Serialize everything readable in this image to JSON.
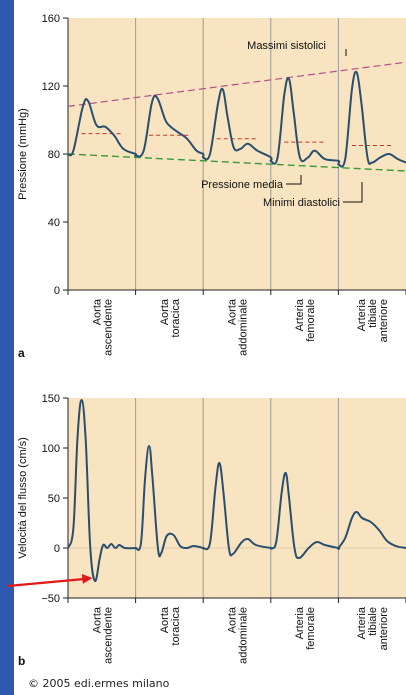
{
  "colors": {
    "panel_bg": "#f8e4c0",
    "divider": "#9a9a9a",
    "curve": "#2a4f6e",
    "systolic_trend": "#b0508a",
    "diastolic_trend": "#3a9a3a",
    "mean_marker": "#c0392b",
    "arrow": "#e01818",
    "edge_strip": "#2e59b0"
  },
  "copyright": "© 2005 edi.ermes milano",
  "chart_data": [
    {
      "panel_label": "a",
      "type": "line",
      "ylabel": "Pressione (mmHg)",
      "ylim": [
        0,
        160
      ],
      "yticks": [
        "0",
        "40",
        "80",
        "120",
        "160"
      ],
      "categories": [
        "Aorta ascendente",
        "Aorta toracica",
        "Aorta addominale",
        "Arteria femorale",
        "Arteria tibiale anteriore"
      ],
      "annotations": [
        "Massimi sistolici",
        "Pressione media",
        "Minimi diastolici"
      ],
      "systolic_peaks": [
        110,
        113,
        118,
        124,
        128
      ],
      "mean_pressure": [
        92,
        91,
        89,
        87,
        85
      ],
      "diastolic_minima": [
        80,
        78,
        77,
        75,
        73
      ],
      "systolic_trend": [
        [
          0,
          108
        ],
        [
          5,
          134
        ]
      ],
      "diastolic_trend": [
        [
          0,
          80
        ],
        [
          5,
          70
        ]
      ],
      "waveform": [
        [
          0,
          80
        ],
        [
          0.08,
          82
        ],
        [
          0.22,
          108
        ],
        [
          0.3,
          111
        ],
        [
          0.42,
          97
        ],
        [
          0.55,
          96
        ],
        [
          0.68,
          91
        ],
        [
          0.82,
          83
        ],
        [
          1.0,
          80
        ],
        [
          1.0,
          79
        ],
        [
          1.12,
          82
        ],
        [
          1.24,
          110
        ],
        [
          1.32,
          113
        ],
        [
          1.44,
          100
        ],
        [
          1.52,
          96
        ],
        [
          1.62,
          93
        ],
        [
          1.76,
          89
        ],
        [
          1.9,
          82
        ],
        [
          2.0,
          80
        ],
        [
          2.0,
          78
        ],
        [
          2.1,
          80
        ],
        [
          2.22,
          110
        ],
        [
          2.29,
          118
        ],
        [
          2.36,
          102
        ],
        [
          2.45,
          84
        ],
        [
          2.55,
          83
        ],
        [
          2.66,
          86
        ],
        [
          2.8,
          82
        ],
        [
          3.0,
          78
        ],
        [
          3.0,
          76
        ],
        [
          3.1,
          78
        ],
        [
          3.2,
          115
        ],
        [
          3.27,
          124
        ],
        [
          3.34,
          104
        ],
        [
          3.43,
          78
        ],
        [
          3.55,
          78
        ],
        [
          3.65,
          82
        ],
        [
          3.8,
          77
        ],
        [
          4.0,
          76
        ],
        [
          4.0,
          74
        ],
        [
          4.1,
          77
        ],
        [
          4.2,
          118
        ],
        [
          4.27,
          128
        ],
        [
          4.34,
          110
        ],
        [
          4.43,
          78
        ],
        [
          4.5,
          75
        ],
        [
          4.62,
          78
        ],
        [
          4.75,
          80
        ],
        [
          4.88,
          77
        ],
        [
          5.0,
          75
        ]
      ]
    },
    {
      "panel_label": "b",
      "type": "line",
      "ylabel": "Velocità del flusso (cm/s)",
      "ylim": [
        -50,
        150
      ],
      "yticks": [
        "−50",
        "0",
        "50",
        "100",
        "150"
      ],
      "ytick_values": [
        -50,
        0,
        50,
        100,
        150
      ],
      "categories": [
        "Aorta ascendente",
        "Aorta toracica",
        "Aorta addominale",
        "Arteria femorale",
        "Arteria tibiale anteriore"
      ],
      "peaks": [
        148,
        102,
        85,
        75,
        36
      ],
      "waveform": [
        [
          0,
          0
        ],
        [
          0.08,
          20
        ],
        [
          0.14,
          110
        ],
        [
          0.2,
          148
        ],
        [
          0.26,
          110
        ],
        [
          0.33,
          0
        ],
        [
          0.4,
          -33
        ],
        [
          0.47,
          -10
        ],
        [
          0.52,
          3
        ],
        [
          0.58,
          0
        ],
        [
          0.64,
          4
        ],
        [
          0.7,
          0
        ],
        [
          0.76,
          3
        ],
        [
          0.84,
          0
        ],
        [
          1.0,
          0
        ],
        [
          1.0,
          0
        ],
        [
          1.08,
          5
        ],
        [
          1.14,
          70
        ],
        [
          1.2,
          102
        ],
        [
          1.25,
          70
        ],
        [
          1.33,
          0
        ],
        [
          1.38,
          -5
        ],
        [
          1.46,
          12
        ],
        [
          1.56,
          13
        ],
        [
          1.66,
          2
        ],
        [
          1.76,
          0
        ],
        [
          1.86,
          2
        ],
        [
          2.0,
          0
        ],
        [
          2.0,
          0
        ],
        [
          2.1,
          5
        ],
        [
          2.18,
          60
        ],
        [
          2.24,
          85
        ],
        [
          2.3,
          55
        ],
        [
          2.38,
          0
        ],
        [
          2.44,
          -6
        ],
        [
          2.56,
          5
        ],
        [
          2.66,
          9
        ],
        [
          2.78,
          3
        ],
        [
          3.0,
          0
        ],
        [
          3.0,
          0
        ],
        [
          3.08,
          6
        ],
        [
          3.16,
          55
        ],
        [
          3.22,
          75
        ],
        [
          3.27,
          50
        ],
        [
          3.35,
          0
        ],
        [
          3.42,
          -10
        ],
        [
          3.56,
          0
        ],
        [
          3.68,
          6
        ],
        [
          3.8,
          3
        ],
        [
          4.0,
          0
        ],
        [
          4.0,
          0
        ],
        [
          4.1,
          10
        ],
        [
          4.2,
          30
        ],
        [
          4.27,
          36
        ],
        [
          4.35,
          30
        ],
        [
          4.48,
          26
        ],
        [
          4.6,
          18
        ],
        [
          4.72,
          7
        ],
        [
          4.85,
          2
        ],
        [
          5.0,
          0
        ]
      ]
    }
  ]
}
